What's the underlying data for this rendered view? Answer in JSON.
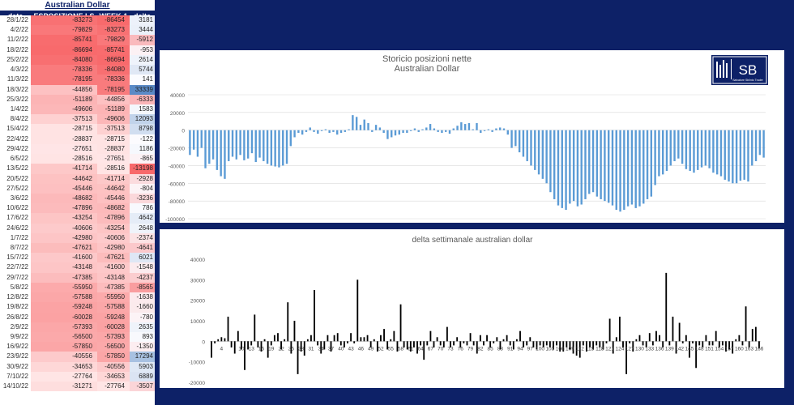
{
  "table": {
    "title": "Australian Dollar",
    "headers": [
      "data",
      "ESPOSIZIONE LS",
      "WEEK-1",
      "delta"
    ],
    "rows": [
      [
        "28/1/22",
        "-83273",
        "-86454",
        "3181"
      ],
      [
        "4/2/22",
        "-79829",
        "-83273",
        "3444"
      ],
      [
        "11/2/22",
        "-85741",
        "-79829",
        "-5912"
      ],
      [
        "18/2/22",
        "-86694",
        "-85741",
        "-953"
      ],
      [
        "25/2/22",
        "-84080",
        "-86694",
        "2614"
      ],
      [
        "4/3/22",
        "-78336",
        "-84080",
        "5744"
      ],
      [
        "11/3/22",
        "-78195",
        "-78336",
        "141"
      ],
      [
        "18/3/22",
        "-44856",
        "-78195",
        "33339"
      ],
      [
        "25/3/22",
        "-51189",
        "-44856",
        "-6333"
      ],
      [
        "1/4/22",
        "-49606",
        "-51189",
        "1583"
      ],
      [
        "8/4/22",
        "-37513",
        "-49606",
        "12093"
      ],
      [
        "15/4/22",
        "-28715",
        "-37513",
        "8798"
      ],
      [
        "22/4/22",
        "-28837",
        "-28715",
        "-122"
      ],
      [
        "29/4/22",
        "-27651",
        "-28837",
        "1186"
      ],
      [
        "6/5/22",
        "-28516",
        "-27651",
        "-865"
      ],
      [
        "13/5/22",
        "-41714",
        "-28516",
        "-13198"
      ],
      [
        "20/5/22",
        "-44642",
        "-41714",
        "-2928"
      ],
      [
        "27/5/22",
        "-45446",
        "-44642",
        "-804"
      ],
      [
        "3/6/22",
        "-48682",
        "-45446",
        "-3236"
      ],
      [
        "10/6/22",
        "-47896",
        "-48682",
        "786"
      ],
      [
        "17/6/22",
        "-43254",
        "-47896",
        "4642"
      ],
      [
        "24/6/22",
        "-40606",
        "-43254",
        "2648"
      ],
      [
        "1/7/22",
        "-42980",
        "-40606",
        "-2374"
      ],
      [
        "8/7/22",
        "-47621",
        "-42980",
        "-4641"
      ],
      [
        "15/7/22",
        "-41600",
        "-47621",
        "6021"
      ],
      [
        "22/7/22",
        "-43148",
        "-41600",
        "-1548"
      ],
      [
        "29/7/22",
        "-47385",
        "-43148",
        "-4237"
      ],
      [
        "5/8/22",
        "-55950",
        "-47385",
        "-8565"
      ],
      [
        "12/8/22",
        "-57588",
        "-55950",
        "-1638"
      ],
      [
        "19/8/22",
        "-59248",
        "-57588",
        "-1660"
      ],
      [
        "26/8/22",
        "-60028",
        "-59248",
        "-780"
      ],
      [
        "2/9/22",
        "-57393",
        "-60028",
        "2635"
      ],
      [
        "9/9/22",
        "-56500",
        "-57393",
        "893"
      ],
      [
        "16/9/22",
        "-57850",
        "-56500",
        "-1350"
      ],
      [
        "23/9/22",
        "-40556",
        "-57850",
        "17294"
      ],
      [
        "30/9/22",
        "-34653",
        "-40556",
        "5903"
      ],
      [
        "7/10/22",
        "-27764",
        "-34653",
        "6889"
      ],
      [
        "14/10/22",
        "-31271",
        "-27764",
        "-3507"
      ]
    ]
  },
  "colors": {
    "background": "#0d2167",
    "line_bar": "#5b9bd5",
    "delta_bar": "#000000",
    "neg_strong": "#f8696b",
    "pos_strong": "#5a8ac6"
  },
  "logo": {
    "text": "SB",
    "subtitle": "Salvatore Sblinto Trader"
  },
  "chart_data": [
    {
      "type": "bar",
      "title": "Storicio posizioni nette",
      "subtitle": "Australian Dollar",
      "ylim": [
        -100000,
        40000
      ],
      "yticks": [
        40000,
        20000,
        0,
        -20000,
        -40000,
        -60000,
        -80000,
        -100000
      ],
      "grid": true,
      "color": "#5b9bd5",
      "values": [
        -28000,
        -22000,
        -30000,
        -20000,
        -43000,
        -38000,
        -33000,
        -45000,
        -52000,
        -55000,
        -35000,
        -30000,
        -33000,
        -28000,
        -34000,
        -32000,
        -26000,
        -36000,
        -31000,
        -35000,
        -38000,
        -40000,
        -41000,
        -42000,
        -40000,
        -38000,
        -18000,
        -8000,
        -3000,
        -5000,
        -2000,
        3000,
        -2000,
        -4000,
        -1000,
        1000,
        -3000,
        -2000,
        -5000,
        -3000,
        -2000,
        1000,
        17000,
        15000,
        6000,
        12000,
        8000,
        -2000,
        6000,
        3000,
        -3000,
        -10000,
        -8000,
        -6000,
        -5000,
        -3000,
        -3000,
        -1000,
        2000,
        -2000,
        1000,
        3000,
        7000,
        2000,
        -2000,
        -3000,
        -2000,
        -4000,
        2000,
        5000,
        9000,
        7000,
        8000,
        1000,
        8000,
        -3000,
        -1000,
        1000,
        -2000,
        2000,
        3000,
        2000,
        -5000,
        -20000,
        -18000,
        -25000,
        -30000,
        -35000,
        -40000,
        -45000,
        -50000,
        -55000,
        -60000,
        -70000,
        -78000,
        -85000,
        -88000,
        -90000,
        -83000,
        -80000,
        -86000,
        -84000,
        -78000,
        -72000,
        -70000,
        -75000,
        -78000,
        -80000,
        -82000,
        -85000,
        -90000,
        -92000,
        -90000,
        -86000,
        -84000,
        -88000,
        -86000,
        -83000,
        -78000,
        -75000,
        -62000,
        -52000,
        -50000,
        -46000,
        -40000,
        -35000,
        -32000,
        -38000,
        -44000,
        -46000,
        -48000,
        -45000,
        -42000,
        -40000,
        -43000,
        -48000,
        -50000,
        -52000,
        -56000,
        -58000,
        -60000,
        -60000,
        -57000,
        -56000,
        -58000,
        -40000,
        -35000,
        -28000,
        -31000
      ]
    },
    {
      "type": "bar",
      "title": "delta settimanale australian dollar",
      "ylim": [
        -20000,
        40000
      ],
      "yticks": [
        40000,
        30000,
        20000,
        10000,
        0,
        -10000,
        -20000
      ],
      "grid": false,
      "color": "#000000",
      "x_tick_labels": [
        "4",
        "10",
        "13",
        "16",
        "19",
        "22",
        "25",
        "28",
        "31",
        "34",
        "37",
        "40",
        "43",
        "46",
        "49",
        "52",
        "55",
        "58",
        "61",
        "64",
        "67",
        "70",
        "73",
        "76",
        "79",
        "82",
        "85",
        "88",
        "91",
        "94",
        "97",
        "100",
        "103",
        "106",
        "109",
        "112",
        "115",
        "118",
        "121",
        "124",
        "127",
        "130",
        "133",
        "136",
        "139",
        "142",
        "145",
        "148",
        "151",
        "154",
        "157",
        "160",
        "163",
        "166"
      ],
      "values": [
        -8000,
        -1000,
        1000,
        2000,
        1500,
        12000,
        -3000,
        -6000,
        5000,
        -4000,
        -14000,
        -4000,
        -2000,
        13000,
        -3000,
        -5000,
        1000,
        -8000,
        -2000,
        3000,
        4000,
        -4000,
        1000,
        19000,
        -6000,
        10000,
        -16000,
        -5000,
        -7000,
        1000,
        3000,
        25000,
        -2000,
        -6000,
        -4000,
        3000,
        -5000,
        3000,
        4000,
        -2000,
        -3000,
        -1000,
        4000,
        -1000,
        30000,
        2000,
        2000,
        3000,
        -3000,
        1000,
        -5000,
        3000,
        6000,
        -4000,
        1000,
        5000,
        -5000,
        18000,
        -3000,
        -4000,
        -5000,
        -3000,
        -6000,
        -2000,
        -9000,
        -2000,
        5000,
        -3000,
        2000,
        -2000,
        -3000,
        7000,
        -3000,
        -2000,
        2000,
        -3000,
        -1000,
        -2000,
        4000,
        -2000,
        -6000,
        3000,
        -2000,
        3000,
        -3000,
        -1000,
        2000,
        -4000,
        1000,
        3000,
        -2000,
        -4000,
        1000,
        5000,
        -3000,
        -2000,
        2000,
        -3000,
        -4000,
        -2000,
        -3000,
        -2000,
        -3000,
        -4000,
        -2000,
        -5000,
        -5000,
        -3000,
        -4000,
        -6000,
        -7000,
        -8000,
        -2000,
        -5000,
        -3000,
        -4000,
        -2000,
        -3000,
        -4000,
        -1000,
        11000,
        -6000,
        2000,
        12000,
        -3000,
        -16000,
        -1000,
        -5000,
        1000,
        3000,
        -2000,
        -3000,
        4000,
        -2000,
        5000,
        3000,
        -3000,
        33339,
        -2000,
        12000,
        -6000,
        9000,
        -1000,
        3000,
        -8000,
        -1000,
        -13000,
        -2000,
        -3000,
        3000,
        -2000,
        -2000,
        5000,
        -3000,
        -2000,
        -5000,
        -4000,
        -6000,
        1000,
        3000,
        -2000,
        17000,
        -3000,
        6000,
        7000,
        -3507
      ]
    }
  ]
}
